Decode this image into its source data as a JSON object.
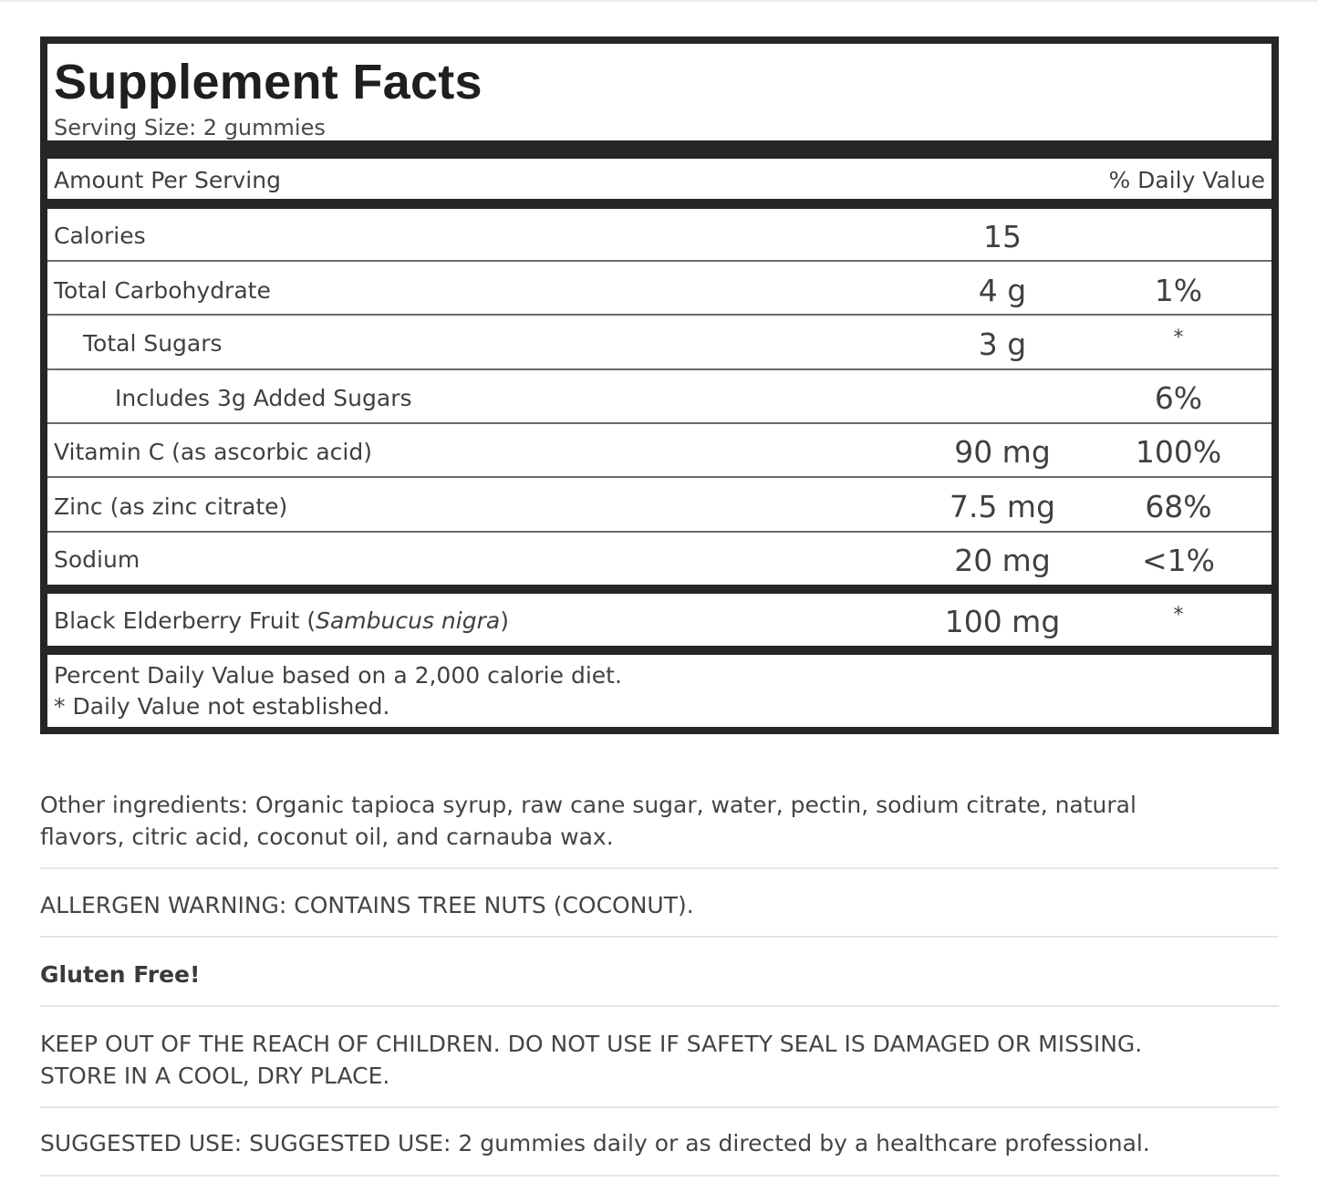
{
  "facts": {
    "title": "Supplement Facts",
    "serving_size": "Serving Size: 2 gummies",
    "amount_header": "Amount Per Serving",
    "dv_header": "% Daily Value",
    "rows": [
      {
        "label": "Calories",
        "amount": "15",
        "dv": ""
      },
      {
        "label": "Total Carbohydrate",
        "amount": "4 g",
        "dv": "1%"
      },
      {
        "label": "Total Sugars",
        "amount": "3 g",
        "dv": "*"
      },
      {
        "label": "Includes 3g Added Sugars",
        "amount": "",
        "dv": "6%"
      },
      {
        "label": "Vitamin C (as ascorbic acid)",
        "amount": "90 mg",
        "dv": "100%"
      },
      {
        "label": "Zinc (as zinc citrate)",
        "amount": "7.5 mg",
        "dv": "68%"
      },
      {
        "label": "Sodium",
        "amount": "20 mg",
        "dv": "<1%"
      }
    ],
    "elderberry": {
      "label_prefix": "Black Elderberry Fruit (",
      "label_italic": "Sambucus nigra",
      "label_suffix": ")",
      "amount": "100 mg",
      "dv": "*"
    },
    "footnote_1": "Percent Daily Value based on a 2,000 calorie diet.",
    "footnote_2": "* Daily Value not established."
  },
  "sections": {
    "other_ingredients_1": "Other ingredients: Organic tapioca syrup, raw cane sugar, water, pectin, sodium citrate, natural",
    "other_ingredients_2": "flavors, citric acid, coconut oil, and carnauba wax.",
    "allergen": "ALLERGEN WARNING: CONTAINS TREE NUTS (COCONUT).",
    "gluten_free": "Gluten Free!",
    "warning_1": "KEEP OUT OF THE REACH OF CHILDREN. DO NOT USE IF SAFETY SEAL IS DAMAGED OR MISSING.",
    "warning_2": "STORE IN A COOL, DRY PLACE.",
    "suggested_use": "SUGGESTED USE: SUGGESTED USE: 2 gummies daily or as directed by a healthcare professional."
  }
}
